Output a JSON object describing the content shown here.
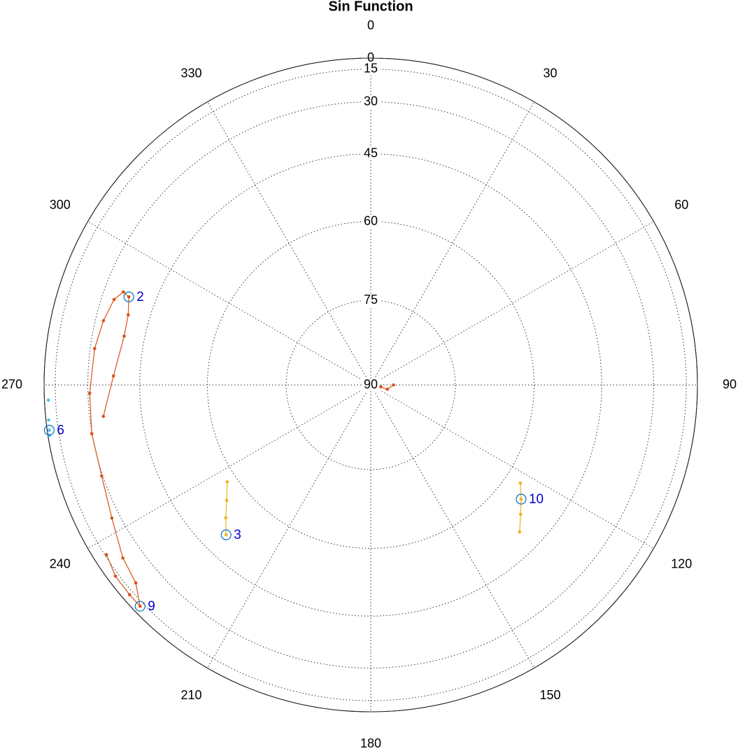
{
  "chart_data": {
    "type": "polar",
    "title": "Sin Function",
    "radial_projection": "cosine",
    "rlim": [
      90,
      0
    ],
    "rticks": [
      0,
      15,
      30,
      45,
      60,
      75,
      90
    ],
    "thetaticks": [
      0,
      30,
      60,
      90,
      120,
      150,
      180,
      210,
      240,
      270,
      300,
      330
    ],
    "theta_direction": "clockwise",
    "theta_zero": "top",
    "grid": true,
    "series": [
      {
        "color": "#d95319",
        "line": true,
        "theta": [
          263.3,
          272,
          281.2,
          286.1,
          290,
          290.6,
          288.4,
          283.5,
          277.5,
          268.3,
          260.1,
          251.3,
          242.8,
          235.1,
          229.9,
          226.2,
          229,
          233.2,
          237.3
        ],
        "r": [
          34.5,
          38,
          39.7,
          39.4,
          38,
          36,
          34.1,
          32.7,
          31.5,
          30.6,
          29.9,
          29.6,
          27,
          22.3,
          19.9,
          12,
          12,
          12.5,
          16
        ]
      },
      {
        "color": "#d95319",
        "line": true,
        "theta": [
          101,
          104.6,
          90
        ],
        "r": [
          88.2,
          87,
          86
        ]
      },
      {
        "color": "#edb120",
        "line": true,
        "theta": [
          236,
          231.3,
          227.5,
          224
        ],
        "r": [
          58,
          55.6,
          53,
          50.4
        ]
      },
      {
        "color": "#edb120",
        "line": true,
        "theta": [
          123.2,
          127.2,
          130.8,
          134.6
        ],
        "r": [
          56.8,
          54.7,
          52.7,
          50.2
        ]
      },
      {
        "color": "#4dbeee",
        "line": false,
        "theta": [
          267.3,
          263.8,
          262,
          261.1
        ],
        "r": [
          8.9,
          7.4,
          6.4,
          5.3
        ]
      }
    ],
    "annotations": [
      {
        "text": "2",
        "theta": 290,
        "r": 38
      },
      {
        "text": "3",
        "theta": 224,
        "r": 50.4
      },
      {
        "text": "6",
        "theta": 262,
        "r": 6.4
      },
      {
        "text": "9",
        "theta": 226.2,
        "r": 12
      },
      {
        "text": "10",
        "theta": 127.2,
        "r": 54.7
      }
    ],
    "annotation_color": "#0072bd"
  }
}
